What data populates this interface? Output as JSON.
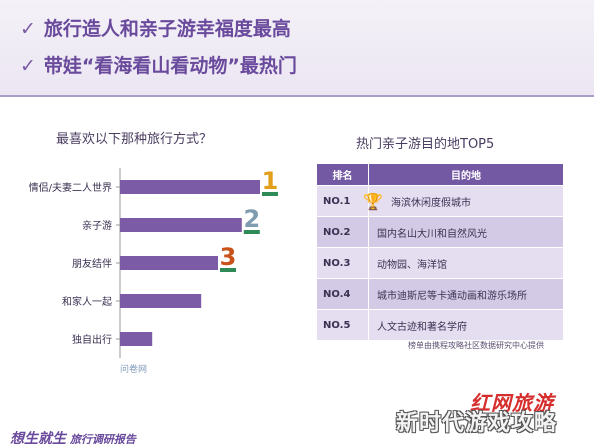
{
  "headlines": [
    {
      "check": "✓",
      "text": "旅行造人和亲子游幸福度最高"
    },
    {
      "check": "✓",
      "text": "带娃“看海看山看动物”最热门"
    }
  ],
  "chart_data": {
    "type": "bar",
    "title": "最喜欢以下那种旅行方式？",
    "categories": [
      "情侣/夫妻二人世界",
      "亲子游",
      "朋友结伴",
      "和家人一起",
      "独自出行"
    ],
    "values": [
      100,
      87,
      70,
      58,
      23
    ],
    "rank_badges": [
      "1",
      "2",
      "3"
    ],
    "bar_color": "#7b5aa6"
  },
  "chart_source": "问卷网",
  "table": {
    "title": "热门亲子游目的地TOP5",
    "headers": [
      "排名",
      "目的地"
    ],
    "rows": [
      {
        "rank": "NO.1",
        "dest": "海滨休闲度假城市",
        "trophy": true
      },
      {
        "rank": "NO.2",
        "dest": "国内名山大川和自然风光"
      },
      {
        "rank": "NO.3",
        "dest": "动物园、海洋馆"
      },
      {
        "rank": "NO.4",
        "dest": "城市迪斯尼等卡通动画和游乐场所"
      },
      {
        "rank": "NO.5",
        "dest": "人文古迹和著名学府"
      }
    ],
    "note": "榜单由携程攻略社区数据研究中心提供"
  },
  "footer": {
    "brand_big": "想生就生",
    "brand_small": "旅行调研报告",
    "logo": "红网旅游",
    "logo_url": "..."
  },
  "watermark": "新时代游戏攻略",
  "colors": {
    "accent": "#7358a3",
    "badge_gold": "#e2a01a",
    "badge_silver": "#7e9bb0",
    "badge_bronze": "#c9521a"
  }
}
